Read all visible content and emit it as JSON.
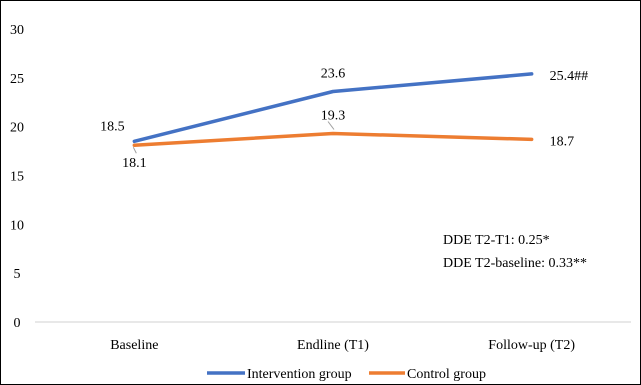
{
  "chart_data": {
    "type": "line",
    "title": "",
    "xlabel": "",
    "ylabel": "",
    "categories": [
      "Baseline",
      "Endline (T1)",
      "Follow-up (T2)"
    ],
    "ylim": [
      0,
      30
    ],
    "yticks": [
      0,
      5,
      10,
      15,
      20,
      25,
      30
    ],
    "grid": false,
    "legend_position": "bottom",
    "series": [
      {
        "name": "Intervention group",
        "color": "#4472C4",
        "values": [
          18.5,
          23.6,
          25.4
        ],
        "labels": [
          "18.5",
          "23.6",
          "25.4##"
        ]
      },
      {
        "name": "Control group",
        "color": "#ED7D31",
        "values": [
          18.1,
          19.3,
          18.7
        ],
        "labels": [
          "18.1",
          "19.3",
          "18.7"
        ]
      }
    ],
    "annotations": [
      "DDE T2-T1: 0.25*",
      "DDE T2-baseline: 0.33**"
    ]
  }
}
